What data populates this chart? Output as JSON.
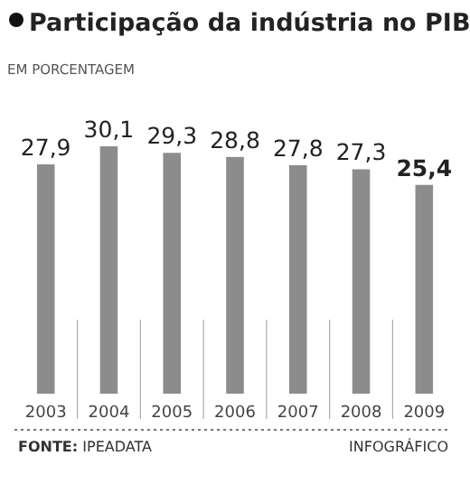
{
  "chart_data": {
    "type": "bar",
    "title": "Participação da indústria no PIB",
    "subtitle": "EM PORCENTAGEM",
    "categories": [
      "2003",
      "2004",
      "2005",
      "2006",
      "2007",
      "2008",
      "2009"
    ],
    "values": [
      27.9,
      30.1,
      29.3,
      28.8,
      27.8,
      27.3,
      25.4
    ],
    "value_labels": [
      "27,9",
      "30,1",
      "29,3",
      "28,8",
      "27,8",
      "27,3",
      "25,4"
    ],
    "color": "#8c8c8c",
    "annotations": [
      "FONTE: IPEADATA",
      "INFOGRÁFICO"
    ]
  }
}
